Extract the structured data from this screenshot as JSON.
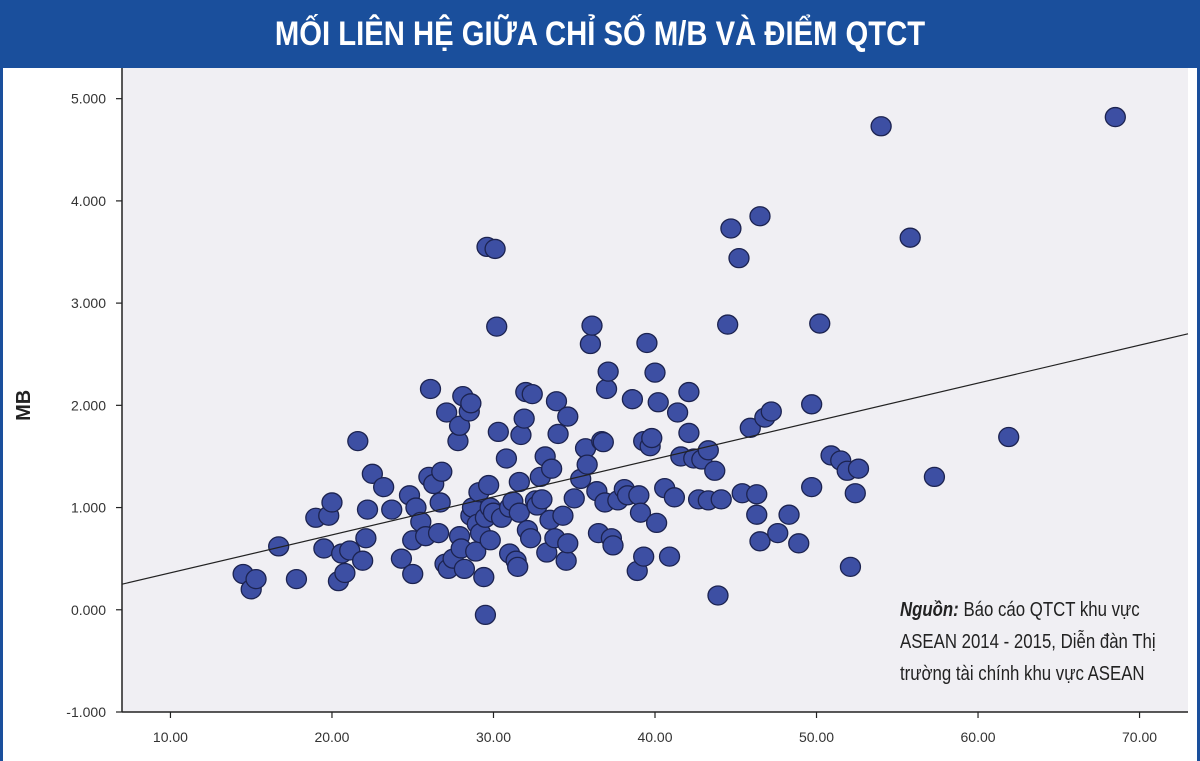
{
  "header": {
    "title": "MỐI LIÊN HỆ GIỮA CHỈ SỐ M/B VÀ ĐIỂM QTCT"
  },
  "source": {
    "label": "Nguồn:",
    "text": " Báo cáo QTCT khu vực ASEAN 2014 - 2015, Diễn đàn Thị trường tài chính khu vực ASEAN"
  },
  "colors": {
    "header_bg": "#1a4f9c",
    "plot_bg": "#f0eff3",
    "point_fill": "#3d4fa3",
    "point_stroke": "#1c2350"
  },
  "chart_data": {
    "type": "scatter",
    "title": "MỐI LIÊN HỆ GIỮA CHỈ SỐ M/B VÀ ĐIỂM QTCT",
    "xlabel": "",
    "ylabel": "MB",
    "xlim": [
      7,
      73
    ],
    "ylim": [
      -1.0,
      5.3
    ],
    "x_ticks": [
      10,
      20,
      30,
      40,
      50,
      60,
      70
    ],
    "x_tick_labels": [
      "10.00",
      "20.00",
      "30.00",
      "40.00",
      "50.00",
      "60.00",
      "70.00"
    ],
    "y_ticks": [
      -1.0,
      0.0,
      1.0,
      2.0,
      3.0,
      4.0,
      5.0
    ],
    "y_tick_labels": [
      "-1.000",
      "0.000",
      "1.000",
      "2.000",
      "3.000",
      "4.000",
      "5.000"
    ],
    "grid": false,
    "trendline": {
      "x": [
        7,
        73
      ],
      "y": [
        0.25,
        2.7
      ]
    },
    "points": [
      [
        14.5,
        0.35
      ],
      [
        15.0,
        0.2
      ],
      [
        15.3,
        0.3
      ],
      [
        16.7,
        0.62
      ],
      [
        17.8,
        0.3
      ],
      [
        19.0,
        0.9
      ],
      [
        19.5,
        0.6
      ],
      [
        19.8,
        0.92
      ],
      [
        20.0,
        1.05
      ],
      [
        20.4,
        0.28
      ],
      [
        20.6,
        0.55
      ],
      [
        20.8,
        0.36
      ],
      [
        21.1,
        0.58
      ],
      [
        21.6,
        1.65
      ],
      [
        21.9,
        0.48
      ],
      [
        22.1,
        0.7
      ],
      [
        22.2,
        0.98
      ],
      [
        22.5,
        1.33
      ],
      [
        23.2,
        1.2
      ],
      [
        23.7,
        0.98
      ],
      [
        24.3,
        0.5
      ],
      [
        24.8,
        1.12
      ],
      [
        25.0,
        0.68
      ],
      [
        25.0,
        0.35
      ],
      [
        25.2,
        1.0
      ],
      [
        25.5,
        0.86
      ],
      [
        25.8,
        0.72
      ],
      [
        26.0,
        1.3
      ],
      [
        26.1,
        2.16
      ],
      [
        26.3,
        1.23
      ],
      [
        26.6,
        0.75
      ],
      [
        26.7,
        1.05
      ],
      [
        26.8,
        1.35
      ],
      [
        27.0,
        0.45
      ],
      [
        27.2,
        0.4
      ],
      [
        27.1,
        1.93
      ],
      [
        27.5,
        0.5
      ],
      [
        27.8,
        1.65
      ],
      [
        27.9,
        1.8
      ],
      [
        27.9,
        0.72
      ],
      [
        28.0,
        0.6
      ],
      [
        28.1,
        2.09
      ],
      [
        28.2,
        0.4
      ],
      [
        28.5,
        1.94
      ],
      [
        28.6,
        2.02
      ],
      [
        28.6,
        0.92
      ],
      [
        28.7,
        1.0
      ],
      [
        28.9,
        0.57
      ],
      [
        29.0,
        0.84
      ],
      [
        29.1,
        1.15
      ],
      [
        29.2,
        0.75
      ],
      [
        29.4,
        0.32
      ],
      [
        29.5,
        0.9
      ],
      [
        29.5,
        -0.05
      ],
      [
        29.6,
        3.55
      ],
      [
        29.7,
        1.22
      ],
      [
        29.8,
        1.0
      ],
      [
        29.8,
        0.68
      ],
      [
        30.0,
        0.95
      ],
      [
        30.1,
        3.53
      ],
      [
        30.2,
        2.77
      ],
      [
        30.3,
        1.74
      ],
      [
        30.5,
        0.9
      ],
      [
        30.8,
        1.48
      ],
      [
        31.0,
        1.0
      ],
      [
        31.0,
        0.55
      ],
      [
        31.2,
        1.06
      ],
      [
        31.4,
        0.48
      ],
      [
        31.5,
        0.42
      ],
      [
        31.6,
        0.95
      ],
      [
        31.6,
        1.25
      ],
      [
        31.7,
        1.71
      ],
      [
        31.9,
        1.87
      ],
      [
        32.0,
        2.13
      ],
      [
        32.1,
        0.78
      ],
      [
        32.3,
        0.7
      ],
      [
        32.4,
        2.11
      ],
      [
        32.6,
        1.07
      ],
      [
        32.7,
        1.02
      ],
      [
        32.9,
        1.3
      ],
      [
        33.0,
        1.08
      ],
      [
        33.2,
        1.5
      ],
      [
        33.3,
        0.56
      ],
      [
        33.5,
        0.88
      ],
      [
        33.6,
        1.38
      ],
      [
        33.8,
        0.7
      ],
      [
        33.9,
        2.04
      ],
      [
        34.0,
        1.72
      ],
      [
        34.3,
        0.92
      ],
      [
        34.5,
        0.48
      ],
      [
        34.6,
        0.65
      ],
      [
        34.6,
        1.89
      ],
      [
        35.0,
        1.09
      ],
      [
        35.4,
        1.28
      ],
      [
        35.7,
        1.58
      ],
      [
        35.8,
        1.42
      ],
      [
        36.0,
        2.6
      ],
      [
        36.1,
        2.78
      ],
      [
        36.4,
        1.16
      ],
      [
        36.5,
        0.75
      ],
      [
        36.7,
        1.65
      ],
      [
        36.8,
        1.64
      ],
      [
        36.9,
        1.05
      ],
      [
        37.0,
        2.16
      ],
      [
        37.1,
        2.33
      ],
      [
        37.3,
        0.7
      ],
      [
        37.4,
        0.63
      ],
      [
        37.7,
        1.07
      ],
      [
        38.1,
        1.18
      ],
      [
        38.3,
        1.12
      ],
      [
        38.6,
        2.06
      ],
      [
        38.9,
        0.38
      ],
      [
        39.0,
        1.12
      ],
      [
        39.1,
        0.95
      ],
      [
        39.3,
        0.52
      ],
      [
        39.3,
        1.65
      ],
      [
        39.5,
        2.61
      ],
      [
        39.7,
        1.6
      ],
      [
        39.8,
        1.68
      ],
      [
        40.0,
        2.32
      ],
      [
        40.1,
        0.85
      ],
      [
        40.2,
        2.03
      ],
      [
        40.6,
        1.19
      ],
      [
        40.9,
        0.52
      ],
      [
        41.2,
        1.1
      ],
      [
        41.4,
        1.93
      ],
      [
        41.6,
        1.5
      ],
      [
        42.1,
        1.73
      ],
      [
        42.1,
        2.13
      ],
      [
        42.4,
        1.48
      ],
      [
        42.7,
        1.08
      ],
      [
        42.9,
        1.47
      ],
      [
        43.3,
        1.56
      ],
      [
        43.3,
        1.07
      ],
      [
        43.7,
        1.36
      ],
      [
        43.9,
        0.14
      ],
      [
        44.1,
        1.08
      ],
      [
        44.5,
        2.79
      ],
      [
        44.7,
        3.73
      ],
      [
        45.2,
        3.44
      ],
      [
        45.4,
        1.14
      ],
      [
        45.9,
        1.78
      ],
      [
        46.3,
        0.93
      ],
      [
        46.3,
        1.13
      ],
      [
        46.5,
        3.85
      ],
      [
        46.5,
        0.67
      ],
      [
        46.8,
        1.88
      ],
      [
        47.2,
        1.94
      ],
      [
        47.6,
        0.75
      ],
      [
        48.3,
        0.93
      ],
      [
        48.9,
        0.65
      ],
      [
        49.7,
        2.01
      ],
      [
        49.7,
        1.2
      ],
      [
        50.2,
        2.8
      ],
      [
        50.9,
        1.51
      ],
      [
        51.5,
        1.46
      ],
      [
        51.9,
        1.36
      ],
      [
        52.1,
        0.42
      ],
      [
        52.4,
        1.14
      ],
      [
        52.6,
        1.38
      ],
      [
        54.0,
        4.73
      ],
      [
        55.8,
        3.64
      ],
      [
        57.3,
        1.3
      ],
      [
        61.9,
        1.69
      ],
      [
        68.5,
        4.82
      ]
    ]
  }
}
